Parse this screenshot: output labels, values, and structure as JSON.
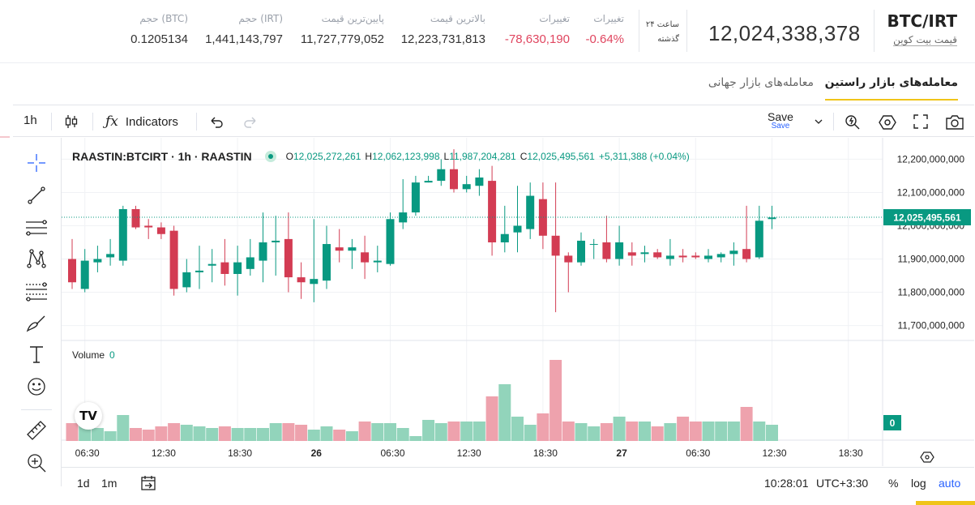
{
  "market": {
    "pair": "BTC/IRT",
    "pair_subtitle": "قیمت بیت کوین",
    "last_price": "12,024,338,378",
    "period_line1": "۲۴ ساعت",
    "period_line2": "گذشته",
    "stats": [
      {
        "key": "change_pct",
        "label": "تغییرات",
        "value": "-0.64%",
        "negative": true
      },
      {
        "key": "change_abs",
        "label": "تغییرات",
        "value": "-78,630,190",
        "negative": true
      },
      {
        "key": "high",
        "label": "بالاترین قیمت",
        "value": "12,223,731,813",
        "negative": false
      },
      {
        "key": "low",
        "label": "پایین‌ترین قیمت",
        "value": "11,727,779,052",
        "negative": false
      },
      {
        "key": "vol_irt",
        "label": "حجم (IRT)",
        "value": "1,441,143,797",
        "negative": false
      },
      {
        "key": "vol_btc",
        "label": "حجم (BTC)",
        "value": "0.1205134",
        "negative": false
      }
    ]
  },
  "tabs": [
    {
      "label": "معامله‌های بازار راستین",
      "active": true
    },
    {
      "label": "معامله‌های بازار جهانی",
      "active": false
    }
  ],
  "toolbar": {
    "interval": "1h",
    "indicators_label": "Indicators",
    "save_label": "Save",
    "save_sub": "Save"
  },
  "legend": {
    "symbol": "RAASTIN:BTCIRT · 1h · RAASTIN",
    "o_label": "O",
    "o_value": "12,025,272,261",
    "h_label": "H",
    "h_value": "12,062,123,998",
    "l_label": "L",
    "l_value": "11,987,204,281",
    "c_label": "C",
    "c_value": "12,025,495,561",
    "change": "+5,311,388 (+0.04%)"
  },
  "volume_legend": {
    "label": "Volume",
    "value": "0"
  },
  "chart_data": {
    "type": "candlestick",
    "price_axis_ticks": [
      "12,200,000,000",
      "12,100,000,000",
      "12,000,000,000",
      "11,900,000,000",
      "11,800,000,000",
      "11,700,000,000"
    ],
    "price_axis_values": [
      12200000000,
      12100000000,
      12000000000,
      11900000000,
      11800000000,
      11700000000
    ],
    "ylim": [
      11660000000,
      12240000000
    ],
    "last_price_label": "12,025,495,561",
    "last_price_value": 12025495561,
    "volume_last_label": "0",
    "time_axis": [
      {
        "label": "06:30",
        "bold": false,
        "index": 1
      },
      {
        "label": "12:30",
        "bold": false,
        "index": 7
      },
      {
        "label": "18:30",
        "bold": false,
        "index": 13
      },
      {
        "label": "26",
        "bold": true,
        "index": 19
      },
      {
        "label": "06:30",
        "bold": false,
        "index": 25
      },
      {
        "label": "12:30",
        "bold": false,
        "index": 31
      },
      {
        "label": "18:30",
        "bold": false,
        "index": 37
      },
      {
        "label": "27",
        "bold": true,
        "index": 43
      },
      {
        "label": "06:30",
        "bold": false,
        "index": 49
      },
      {
        "label": "12:30",
        "bold": false,
        "index": 55
      },
      {
        "label": "18:30",
        "bold": false,
        "index": 61
      }
    ],
    "candles": [
      {
        "o": 11900,
        "h": 11960,
        "l": 11810,
        "c": 11830,
        "v": 0.22
      },
      {
        "o": 11810,
        "h": 11930,
        "l": 11800,
        "c": 11895,
        "v": 0.24
      },
      {
        "o": 11890,
        "h": 11940,
        "l": 11860,
        "c": 11900,
        "v": 0.16
      },
      {
        "o": 11905,
        "h": 11960,
        "l": 11880,
        "c": 11915,
        "v": 0.12
      },
      {
        "o": 11895,
        "h": 12060,
        "l": 11880,
        "c": 12050,
        "v": 0.32
      },
      {
        "o": 12050,
        "h": 12060,
        "l": 11990,
        "c": 11995,
        "v": 0.16
      },
      {
        "o": 12000,
        "h": 12020,
        "l": 11960,
        "c": 11995,
        "v": 0.14
      },
      {
        "o": 11995,
        "h": 12010,
        "l": 11960,
        "c": 11975,
        "v": 0.18
      },
      {
        "o": 11985,
        "h": 12000,
        "l": 11790,
        "c": 11810,
        "v": 0.22
      },
      {
        "o": 11815,
        "h": 11900,
        "l": 11800,
        "c": 11860,
        "v": 0.2
      },
      {
        "o": 11860,
        "h": 11940,
        "l": 11810,
        "c": 11865,
        "v": 0.18
      },
      {
        "o": 11880,
        "h": 11930,
        "l": 11830,
        "c": 11885,
        "v": 0.16
      },
      {
        "o": 11890,
        "h": 11960,
        "l": 11820,
        "c": 11855,
        "v": 0.18
      },
      {
        "o": 11855,
        "h": 11940,
        "l": 11790,
        "c": 11890,
        "v": 0.16
      },
      {
        "o": 11870,
        "h": 11960,
        "l": 11850,
        "c": 11905,
        "v": 0.16
      },
      {
        "o": 11895,
        "h": 12040,
        "l": 11830,
        "c": 11950,
        "v": 0.16
      },
      {
        "o": 11950,
        "h": 12030,
        "l": 11850,
        "c": 11955,
        "v": 0.22
      },
      {
        "o": 11960,
        "h": 12040,
        "l": 11800,
        "c": 11845,
        "v": 0.22
      },
      {
        "o": 11845,
        "h": 11890,
        "l": 11780,
        "c": 11830,
        "v": 0.2
      },
      {
        "o": 11825,
        "h": 12020,
        "l": 11770,
        "c": 11840,
        "v": 0.14
      },
      {
        "o": 11835,
        "h": 12000,
        "l": 11810,
        "c": 11945,
        "v": 0.18
      },
      {
        "o": 11935,
        "h": 11990,
        "l": 11890,
        "c": 11925,
        "v": 0.14
      },
      {
        "o": 11925,
        "h": 11960,
        "l": 11870,
        "c": 11935,
        "v": 0.12
      },
      {
        "o": 11920,
        "h": 11970,
        "l": 11840,
        "c": 11890,
        "v": 0.24
      },
      {
        "o": 11890,
        "h": 11940,
        "l": 11860,
        "c": 11895,
        "v": 0.22
      },
      {
        "o": 11885,
        "h": 12040,
        "l": 11880,
        "c": 12020,
        "v": 0.22
      },
      {
        "o": 12010,
        "h": 12140,
        "l": 11990,
        "c": 12040,
        "v": 0.16
      },
      {
        "o": 12040,
        "h": 12150,
        "l": 12030,
        "c": 12130,
        "v": 0.06
      },
      {
        "o": 12130,
        "h": 12150,
        "l": 12130,
        "c": 12135,
        "v": 0.26
      },
      {
        "o": 12135,
        "h": 12200,
        "l": 12120,
        "c": 12170,
        "v": 0.22
      },
      {
        "o": 12170,
        "h": 12230,
        "l": 12100,
        "c": 12110,
        "v": 0.24
      },
      {
        "o": 12110,
        "h": 12150,
        "l": 12100,
        "c": 12125,
        "v": 0.24
      },
      {
        "o": 12120,
        "h": 12170,
        "l": 12090,
        "c": 12145,
        "v": 0.24
      },
      {
        "o": 12135,
        "h": 12180,
        "l": 11910,
        "c": 11950,
        "v": 0.55
      },
      {
        "o": 11950,
        "h": 12060,
        "l": 11920,
        "c": 11975,
        "v": 0.7
      },
      {
        "o": 11980,
        "h": 12120,
        "l": 11920,
        "c": 12000,
        "v": 0.3
      },
      {
        "o": 11990,
        "h": 12130,
        "l": 11960,
        "c": 12090,
        "v": 0.2
      },
      {
        "o": 12080,
        "h": 12130,
        "l": 11930,
        "c": 11970,
        "v": 0.34
      },
      {
        "o": 11970,
        "h": 12130,
        "l": 11740,
        "c": 11910,
        "v": 1.0
      },
      {
        "o": 11910,
        "h": 11920,
        "l": 11800,
        "c": 11890,
        "v": 0.24
      },
      {
        "o": 11890,
        "h": 11980,
        "l": 11880,
        "c": 11955,
        "v": 0.22
      },
      {
        "o": 11945,
        "h": 11960,
        "l": 11900,
        "c": 11945,
        "v": 0.18
      },
      {
        "o": 11950,
        "h": 12030,
        "l": 11890,
        "c": 11900,
        "v": 0.22
      },
      {
        "o": 11900,
        "h": 12000,
        "l": 11880,
        "c": 11950,
        "v": 0.3
      },
      {
        "o": 11920,
        "h": 11950,
        "l": 11880,
        "c": 11910,
        "v": 0.24
      },
      {
        "o": 11915,
        "h": 11940,
        "l": 11890,
        "c": 11920,
        "v": 0.24
      },
      {
        "o": 11920,
        "h": 11930,
        "l": 11900,
        "c": 11905,
        "v": 0.18
      },
      {
        "o": 11900,
        "h": 11960,
        "l": 11880,
        "c": 11910,
        "v": 0.22
      },
      {
        "o": 11910,
        "h": 11930,
        "l": 11890,
        "c": 11905,
        "v": 0.3
      },
      {
        "o": 11910,
        "h": 11920,
        "l": 11900,
        "c": 11905,
        "v": 0.24
      },
      {
        "o": 11900,
        "h": 11930,
        "l": 11890,
        "c": 11910,
        "v": 0.24
      },
      {
        "o": 11905,
        "h": 11920,
        "l": 11890,
        "c": 11915,
        "v": 0.24
      },
      {
        "o": 11915,
        "h": 11950,
        "l": 11880,
        "c": 11925,
        "v": 0.24
      },
      {
        "o": 11930,
        "h": 12060,
        "l": 11890,
        "c": 11900,
        "v": 0.42
      },
      {
        "o": 11905,
        "h": 12060,
        "l": 11900,
        "c": 12015,
        "v": 0.24
      },
      {
        "o": 12020,
        "h": 12060,
        "l": 11990,
        "c": 12025,
        "v": 0.2
      }
    ]
  },
  "bottombar": {
    "range_1d": "1d",
    "range_1m": "1m",
    "time": "10:28:01",
    "timezone": "UTC+3:30",
    "percent": "%",
    "log": "log",
    "auto": "auto"
  },
  "colors": {
    "up": "#089981",
    "down": "#d33c53",
    "up_volume": "#92d4bb",
    "down_volume": "#eea2ad",
    "accent": "#f0c419"
  }
}
